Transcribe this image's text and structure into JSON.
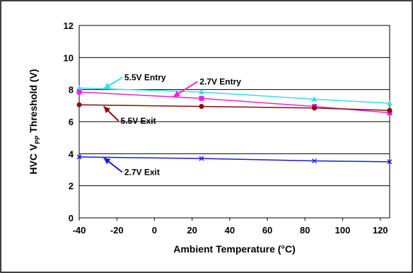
{
  "chart_data": {
    "type": "line",
    "xlabel": "Ambient Temperature (°C)",
    "ylabel": {
      "prefix": "HVC V",
      "subscript": "PP",
      "suffix": " Threshold (V)"
    },
    "xlim": [
      -40,
      125
    ],
    "ylim": [
      0,
      12
    ],
    "x_ticks": [
      -40,
      -20,
      0,
      20,
      40,
      60,
      80,
      100,
      120
    ],
    "y_ticks": [
      0,
      2,
      4,
      6,
      8,
      10,
      12
    ],
    "grid": "horizontal",
    "legend": "none (inline annotations with arrows)",
    "series": [
      {
        "name": "5.5V Entry",
        "color": "#33e0f0",
        "marker": "triangle",
        "x": [
          -40,
          25,
          85,
          125
        ],
        "y": [
          8.1,
          7.85,
          7.4,
          7.15
        ]
      },
      {
        "name": "2.7V Entry",
        "color": "#ee22dd",
        "marker": "square",
        "x": [
          -40,
          25,
          85,
          125
        ],
        "y": [
          7.85,
          7.45,
          6.95,
          6.55
        ]
      },
      {
        "name": "5.5V Exit",
        "color": "#8b0a0a",
        "marker": "circle",
        "x": [
          -40,
          25,
          85,
          125
        ],
        "y": [
          7.05,
          6.95,
          6.85,
          6.7
        ]
      },
      {
        "name": "2.7V Exit",
        "color": "#1a1ae0",
        "marker": "x",
        "x": [
          -40,
          25,
          85,
          125
        ],
        "y": [
          3.8,
          3.7,
          3.55,
          3.5
        ]
      }
    ],
    "annotations": [
      {
        "text": "5.5V Entry",
        "series": 0,
        "label_at": [
          -16,
          8.75
        ],
        "arrow_to": [
          -27,
          8.05
        ]
      },
      {
        "text": "2.7V Entry",
        "series": 1,
        "label_at": [
          24,
          8.5
        ],
        "arrow_to": [
          10,
          7.55
        ]
      },
      {
        "text": "5.5V Exit",
        "series": 2,
        "label_at": [
          -18,
          6.05
        ],
        "arrow_to": [
          -27,
          6.95
        ]
      },
      {
        "text": "2.7V Exit",
        "series": 3,
        "label_at": [
          -16,
          2.85
        ],
        "arrow_to": [
          -27,
          3.75
        ]
      }
    ]
  }
}
